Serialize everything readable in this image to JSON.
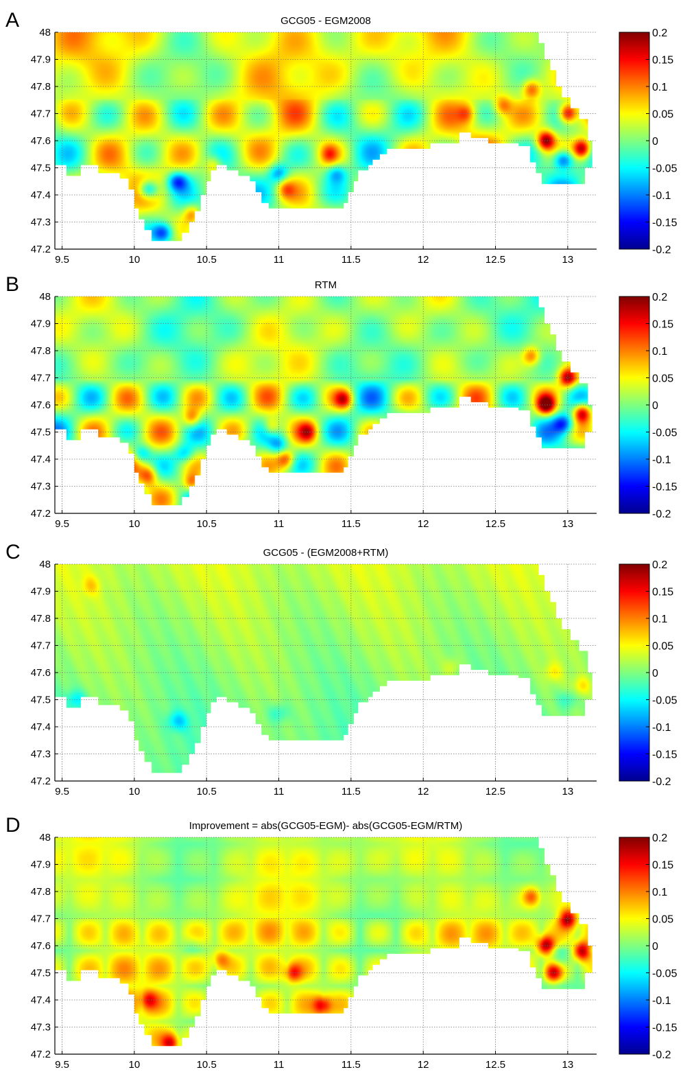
{
  "chart_data": [
    {
      "type": "heatmap",
      "panel": "A",
      "title": "GCG05 - EGM2008",
      "xlim": [
        9.45,
        13.2
      ],
      "ylim": [
        47.2,
        48.0
      ],
      "x_ticks": [
        "9.5",
        "10",
        "10.5",
        "11",
        "11.5",
        "12",
        "12.5",
        "13"
      ],
      "y_ticks": [
        "48",
        "47.9",
        "47.8",
        "47.7",
        "47.6",
        "47.5",
        "47.4",
        "47.3",
        "47.2"
      ],
      "colorbar": {
        "min": -0.2,
        "max": 0.2,
        "ticks": [
          "0.2",
          "0.15",
          "0.1",
          "0.05",
          "0",
          "-0.05",
          "-0.1",
          "-0.15",
          "-0.2"
        ]
      },
      "grid": "on",
      "field": "residual",
      "hotspots": [
        [
          12.85,
          47.6,
          0.18
        ],
        [
          13.0,
          47.7,
          0.17
        ],
        [
          13.1,
          47.57,
          0.18
        ],
        [
          12.75,
          47.79,
          0.1
        ],
        [
          12.55,
          47.73,
          0.08
        ],
        [
          12.3,
          47.7,
          0.07
        ],
        [
          11.35,
          47.55,
          0.08
        ],
        [
          11.05,
          47.42,
          0.07
        ],
        [
          10.4,
          47.33,
          0.09
        ],
        [
          10.55,
          47.51,
          0.07
        ]
      ],
      "lows": [
        [
          10.1,
          47.42,
          -0.15
        ],
        [
          10.3,
          47.45,
          -0.12
        ],
        [
          11.0,
          47.48,
          -0.1
        ],
        [
          11.4,
          47.48,
          -0.08
        ],
        [
          10.2,
          47.26,
          -0.12
        ],
        [
          12.97,
          47.53,
          -0.14
        ]
      ]
    },
    {
      "type": "heatmap",
      "panel": "B",
      "title": "RTM",
      "xlim": [
        9.45,
        13.2
      ],
      "ylim": [
        47.2,
        48.0
      ],
      "x_ticks": [
        "9.5",
        "10",
        "10.5",
        "11",
        "11.5",
        "12",
        "12.5",
        "13"
      ],
      "y_ticks": [
        "48",
        "47.9",
        "47.8",
        "47.7",
        "47.6",
        "47.5",
        "47.4",
        "47.3",
        "47.2"
      ],
      "colorbar": {
        "min": -0.2,
        "max": 0.2,
        "ticks": [
          "0.2",
          "0.15",
          "0.1",
          "0.05",
          "0",
          "-0.05",
          "-0.1",
          "-0.15",
          "-0.2"
        ]
      },
      "grid": "on",
      "field": "rtm",
      "hotspots": [
        [
          12.85,
          47.6,
          0.18
        ],
        [
          13.0,
          47.7,
          0.17
        ],
        [
          13.1,
          47.57,
          0.18
        ],
        [
          12.75,
          47.78,
          0.1
        ],
        [
          11.45,
          47.62,
          0.12
        ],
        [
          11.2,
          47.5,
          0.1
        ],
        [
          11.05,
          47.4,
          0.11
        ],
        [
          10.4,
          47.31,
          0.11
        ],
        [
          10.4,
          47.55,
          0.1
        ],
        [
          10.95,
          47.52,
          0.09
        ],
        [
          10.1,
          47.34,
          0.1
        ]
      ],
      "lows": [
        [
          10.05,
          47.42,
          -0.1
        ],
        [
          11.0,
          47.45,
          -0.08
        ],
        [
          12.97,
          47.53,
          -0.12
        ],
        [
          10.35,
          47.42,
          -0.08
        ]
      ]
    },
    {
      "type": "heatmap",
      "panel": "C",
      "title": "GCG05 - (EGM2008+RTM)",
      "xlim": [
        9.45,
        13.2
      ],
      "ylim": [
        47.2,
        48.0
      ],
      "x_ticks": [
        "9.5",
        "10",
        "10.5",
        "11",
        "11.5",
        "12",
        "12.5",
        "13"
      ],
      "y_ticks": [
        "48",
        "47.9",
        "47.8",
        "47.7",
        "47.6",
        "47.5",
        "47.4",
        "47.3",
        "47.2"
      ],
      "colorbar": {
        "min": -0.2,
        "max": 0.2,
        "ticks": [
          "0.2",
          "0.15",
          "0.1",
          "0.05",
          "0",
          "-0.05",
          "-0.1",
          "-0.15",
          "-0.2"
        ]
      },
      "grid": "on",
      "field": "smooth",
      "hotspots": [
        [
          13.1,
          47.55,
          0.05
        ],
        [
          12.9,
          47.6,
          0.04
        ],
        [
          9.7,
          47.92,
          0.04
        ],
        [
          12.2,
          47.62,
          0.03
        ]
      ],
      "lows": [
        [
          10.3,
          47.42,
          -0.06
        ],
        [
          11.0,
          47.45,
          -0.04
        ],
        [
          9.6,
          47.5,
          -0.05
        ],
        [
          13.0,
          47.5,
          -0.04
        ]
      ]
    },
    {
      "type": "heatmap",
      "panel": "D",
      "title": "Improvement = abs(GCG05-EGM)- abs(GCG05-EGM/RTM)",
      "xlim": [
        9.45,
        13.2
      ],
      "ylim": [
        47.2,
        48.0
      ],
      "x_ticks": [
        "9.5",
        "10",
        "10.5",
        "11",
        "11.5",
        "12",
        "12.5",
        "13"
      ],
      "y_ticks": [
        "48",
        "47.9",
        "47.8",
        "47.7",
        "47.6",
        "47.5",
        "47.4",
        "47.3",
        "47.2"
      ],
      "colorbar": {
        "min": -0.2,
        "max": 0.2,
        "ticks": [
          "0.2",
          "0.15",
          "0.1",
          "0.05",
          "0",
          "-0.05",
          "-0.1",
          "-0.15",
          "-0.2"
        ]
      },
      "grid": "on",
      "field": "improvement",
      "hotspots": [
        [
          12.85,
          47.6,
          0.17
        ],
        [
          13.0,
          47.7,
          0.16
        ],
        [
          13.1,
          47.58,
          0.17
        ],
        [
          12.9,
          47.5,
          0.14
        ],
        [
          11.1,
          47.5,
          0.1
        ],
        [
          11.3,
          47.38,
          0.12
        ],
        [
          10.25,
          47.24,
          0.12
        ],
        [
          10.1,
          47.4,
          0.09
        ],
        [
          10.6,
          47.55,
          0.07
        ],
        [
          12.75,
          47.78,
          0.09
        ]
      ],
      "lows": [
        [
          12.95,
          47.55,
          -0.05
        ],
        [
          10.4,
          47.6,
          -0.03
        ]
      ]
    }
  ]
}
